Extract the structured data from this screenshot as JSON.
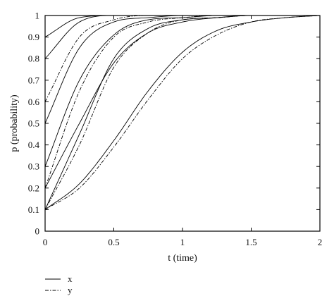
{
  "chart_data": {
    "type": "line",
    "xlabel": "t (time)",
    "ylabel": "p (probability)",
    "xlim": [
      0,
      2
    ],
    "ylim": [
      0,
      1
    ],
    "x_ticks": [
      "0",
      "0.5",
      "1",
      "1.5",
      "2"
    ],
    "y_ticks": [
      "0",
      "0.1",
      "0.2",
      "0.3",
      "0.4",
      "0.5",
      "0.6",
      "0.7",
      "0.8",
      "0.9",
      "1"
    ],
    "grid": false,
    "legend_position": "bottom-left",
    "legend": [
      {
        "label": "x",
        "style": "solid"
      },
      {
        "label": "y",
        "style": "dash-dot"
      }
    ],
    "series": [
      {
        "style": "solid",
        "x": [
          0,
          0.25,
          0.5,
          0.75,
          1,
          1.25,
          1.5,
          1.75,
          2
        ],
        "y": [
          0.1,
          0.22,
          0.42,
          0.65,
          0.83,
          0.93,
          0.97,
          0.99,
          1.0
        ]
      },
      {
        "style": "dash-dot",
        "x": [
          0,
          0.25,
          0.5,
          0.75,
          1,
          1.25,
          1.5,
          1.75,
          2
        ],
        "y": [
          0.1,
          0.2,
          0.39,
          0.61,
          0.8,
          0.91,
          0.97,
          0.99,
          1.0
        ]
      },
      {
        "style": "solid",
        "x": [
          0,
          0.25,
          0.5,
          0.75,
          1,
          1.25,
          1.5,
          1.75,
          2
        ],
        "y": [
          0.1,
          0.45,
          0.8,
          0.94,
          0.98,
          0.99,
          1.0,
          1.0,
          1.0
        ]
      },
      {
        "style": "dash-dot",
        "x": [
          0,
          0.25,
          0.5,
          0.75,
          1,
          1.25,
          1.5,
          1.75,
          2
        ],
        "y": [
          0.1,
          0.4,
          0.76,
          0.92,
          0.98,
          0.99,
          1.0,
          1.0,
          1.0
        ]
      },
      {
        "style": "solid",
        "x": [
          0,
          0.25,
          0.5,
          0.75,
          1,
          1.25,
          1.5,
          1.75,
          2
        ],
        "y": [
          0.2,
          0.5,
          0.78,
          0.92,
          0.97,
          0.99,
          1.0,
          1.0,
          1.0
        ]
      },
      {
        "style": "dash-dot",
        "x": [
          0,
          0.25,
          0.5,
          0.75,
          1,
          1.25,
          1.5,
          1.75,
          2
        ],
        "y": [
          0.2,
          0.65,
          0.9,
          0.97,
          0.99,
          1.0,
          1.0,
          1.0,
          1.0
        ]
      },
      {
        "style": "solid",
        "x": [
          0,
          0.25,
          0.5,
          0.75,
          1,
          1.25,
          1.5,
          1.75,
          2
        ],
        "y": [
          0.3,
          0.7,
          0.91,
          0.98,
          0.99,
          1.0,
          1.0,
          1.0,
          1.0
        ]
      },
      {
        "style": "solid",
        "x": [
          0,
          0.25,
          0.5,
          0.75,
          1,
          1.25,
          1.5,
          1.75,
          2
        ],
        "y": [
          0.5,
          0.85,
          0.97,
          0.99,
          1.0,
          1.0,
          1.0,
          1.0,
          1.0
        ]
      },
      {
        "style": "dash-dot",
        "x": [
          0,
          0.25,
          0.5,
          0.75,
          1,
          1.25,
          1.5,
          1.75,
          2
        ],
        "y": [
          0.6,
          0.9,
          0.98,
          1.0,
          1.0,
          1.0,
          1.0,
          1.0,
          1.0
        ]
      },
      {
        "style": "solid",
        "x": [
          0,
          0.25,
          0.5,
          0.75,
          1,
          1.25,
          1.5,
          1.75,
          2
        ],
        "y": [
          0.8,
          0.97,
          1.0,
          1.0,
          1.0,
          1.0,
          1.0,
          1.0,
          1.0
        ]
      },
      {
        "style": "solid",
        "x": [
          0,
          0.25,
          0.5,
          0.75,
          1,
          1.25,
          1.5,
          1.75,
          2
        ],
        "y": [
          0.9,
          0.99,
          1.0,
          1.0,
          1.0,
          1.0,
          1.0,
          1.0,
          1.0
        ]
      }
    ]
  }
}
